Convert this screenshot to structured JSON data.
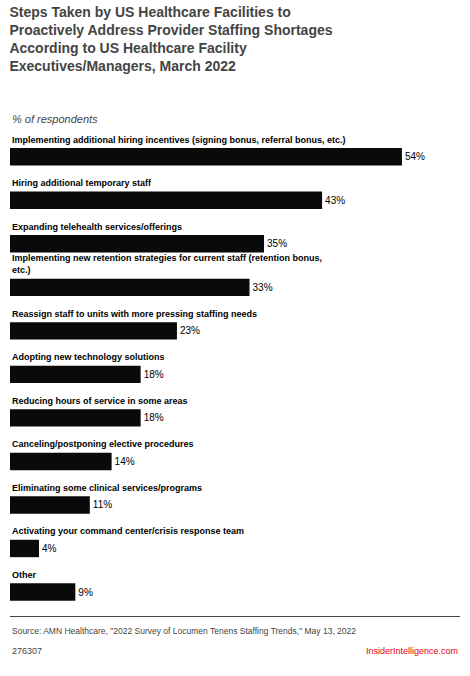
{
  "chart_data": {
    "type": "bar",
    "orientation": "horizontal",
    "title": "Steps Taken by US Healthcare Facilities to\nProactively Address Provider Staffing Shortages\nAccording to US Healthcare Facility\nExecutives/Managers, March 2022",
    "subtitle": "% of respondents",
    "categories": [
      "Implementing additional hiring incentives (signing bonus, referral bonus, etc.)",
      "Hiring additional temporary staff",
      "Expanding telehealth services/offerings",
      "Implementing new retention strategies for current staff (retention bonus,\netc.)",
      "Reassign staff to units with more pressing staffing needs",
      "Adopting new technology solutions",
      "Reducing hours of service in some areas",
      "Canceling/postponing elective procedures",
      "Eliminating some clinical services/programs",
      "Activating your command center/crisis response team",
      "Other"
    ],
    "values": [
      54,
      43,
      35,
      33,
      23,
      18,
      18,
      14,
      11,
      4,
      9
    ],
    "value_labels": [
      "54%",
      "43%",
      "35%",
      "33%",
      "23%",
      "18%",
      "18%",
      "14%",
      "11%",
      "4%",
      "9%"
    ],
    "data_labels": true,
    "color": "#0a0a0a",
    "xlim": [
      0,
      62
    ],
    "grid": false,
    "tick_labels": "y",
    "annotations": [
      {
        "text": "Source: AMN Healthcare, \"2022 Survey of Locumen Tenens Staffing Trends,\" May 13, 2022"
      },
      {
        "text": "276307"
      },
      {
        "text": "InsiderIntelligence.com",
        "color": "#e8000d"
      }
    ]
  }
}
